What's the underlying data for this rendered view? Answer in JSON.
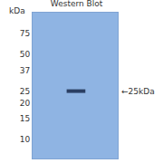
{
  "chart_data": {
    "type": "blot",
    "title": "Western Blot",
    "y_label": "kDa",
    "log": "y",
    "ylim": [
      7,
      110
    ],
    "yticks": [
      75,
      50,
      37,
      25,
      20,
      15,
      10
    ],
    "bands": [
      {
        "value": 25,
        "label": "←25kDa"
      }
    ],
    "color": "#2b3f63"
  }
}
